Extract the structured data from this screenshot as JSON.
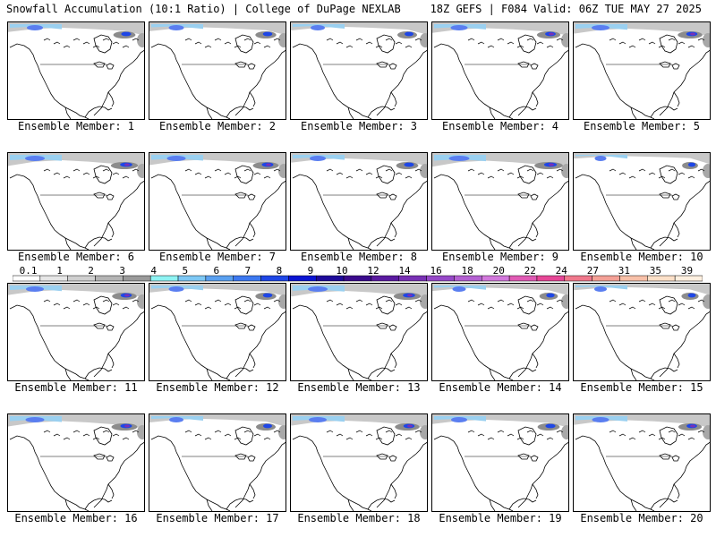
{
  "header": {
    "left_title": "Snowfall Accumulation (10:1 Ratio) | College of DuPage NEXLAB",
    "right_title": "18Z GEFS | F084 Valid: 06Z TUE MAY 27 2025"
  },
  "legend": {
    "labels": [
      "0.1",
      "1",
      "2",
      "3",
      "4",
      "5",
      "6",
      "7",
      "8",
      "9",
      "10",
      "12",
      "14",
      "16",
      "18",
      "20",
      "22",
      "24",
      "27",
      "31",
      "35",
      "39"
    ],
    "colors": [
      "#ffffff",
      "#e6e6e6",
      "#cfcfcf",
      "#b4b4b4",
      "#9a9a9a",
      "#8ef3f3",
      "#7dc8f5",
      "#5aa0f0",
      "#3c78f0",
      "#1e46e6",
      "#0a14d2",
      "#1e0a9a",
      "#3a0a8c",
      "#5a1aa0",
      "#7830b4",
      "#9648c8",
      "#b460d2",
      "#d278dc",
      "#e05ab4",
      "#e64696",
      "#f0788c",
      "#f4a096",
      "#f8c0a8",
      "#fce0c8",
      "#fff0e0"
    ]
  },
  "panels": [
    {
      "label": "Ensemble Member: 1",
      "snow_level": 0.6
    },
    {
      "label": "Ensemble Member: 2",
      "snow_level": 0.55
    },
    {
      "label": "Ensemble Member: 3",
      "snow_level": 0.5
    },
    {
      "label": "Ensemble Member: 4",
      "snow_level": 0.65
    },
    {
      "label": "Ensemble Member: 5",
      "snow_level": 0.7
    },
    {
      "label": "Ensemble Member: 6",
      "snow_level": 0.8
    },
    {
      "label": "Ensemble Member: 7",
      "snow_level": 0.75
    },
    {
      "label": "Ensemble Member: 8",
      "snow_level": 0.6
    },
    {
      "label": "Ensemble Member: 9",
      "snow_level": 0.85
    },
    {
      "label": "Ensemble Member: 10",
      "snow_level": 0.35
    },
    {
      "label": "Ensemble Member: 11",
      "snow_level": 0.7
    },
    {
      "label": "Ensemble Member: 12",
      "snow_level": 0.55
    },
    {
      "label": "Ensemble Member: 13",
      "snow_level": 0.8
    },
    {
      "label": "Ensemble Member: 14",
      "snow_level": 0.45
    },
    {
      "label": "Ensemble Member: 15",
      "snow_level": 0.4
    },
    {
      "label": "Ensemble Member: 16",
      "snow_level": 0.75
    },
    {
      "label": "Ensemble Member: 17",
      "snow_level": 0.5
    },
    {
      "label": "Ensemble Member: 18",
      "snow_level": 0.7
    },
    {
      "label": "Ensemble Member: 19",
      "snow_level": 0.6
    },
    {
      "label": "Ensemble Member: 20",
      "snow_level": 0.65
    }
  ]
}
